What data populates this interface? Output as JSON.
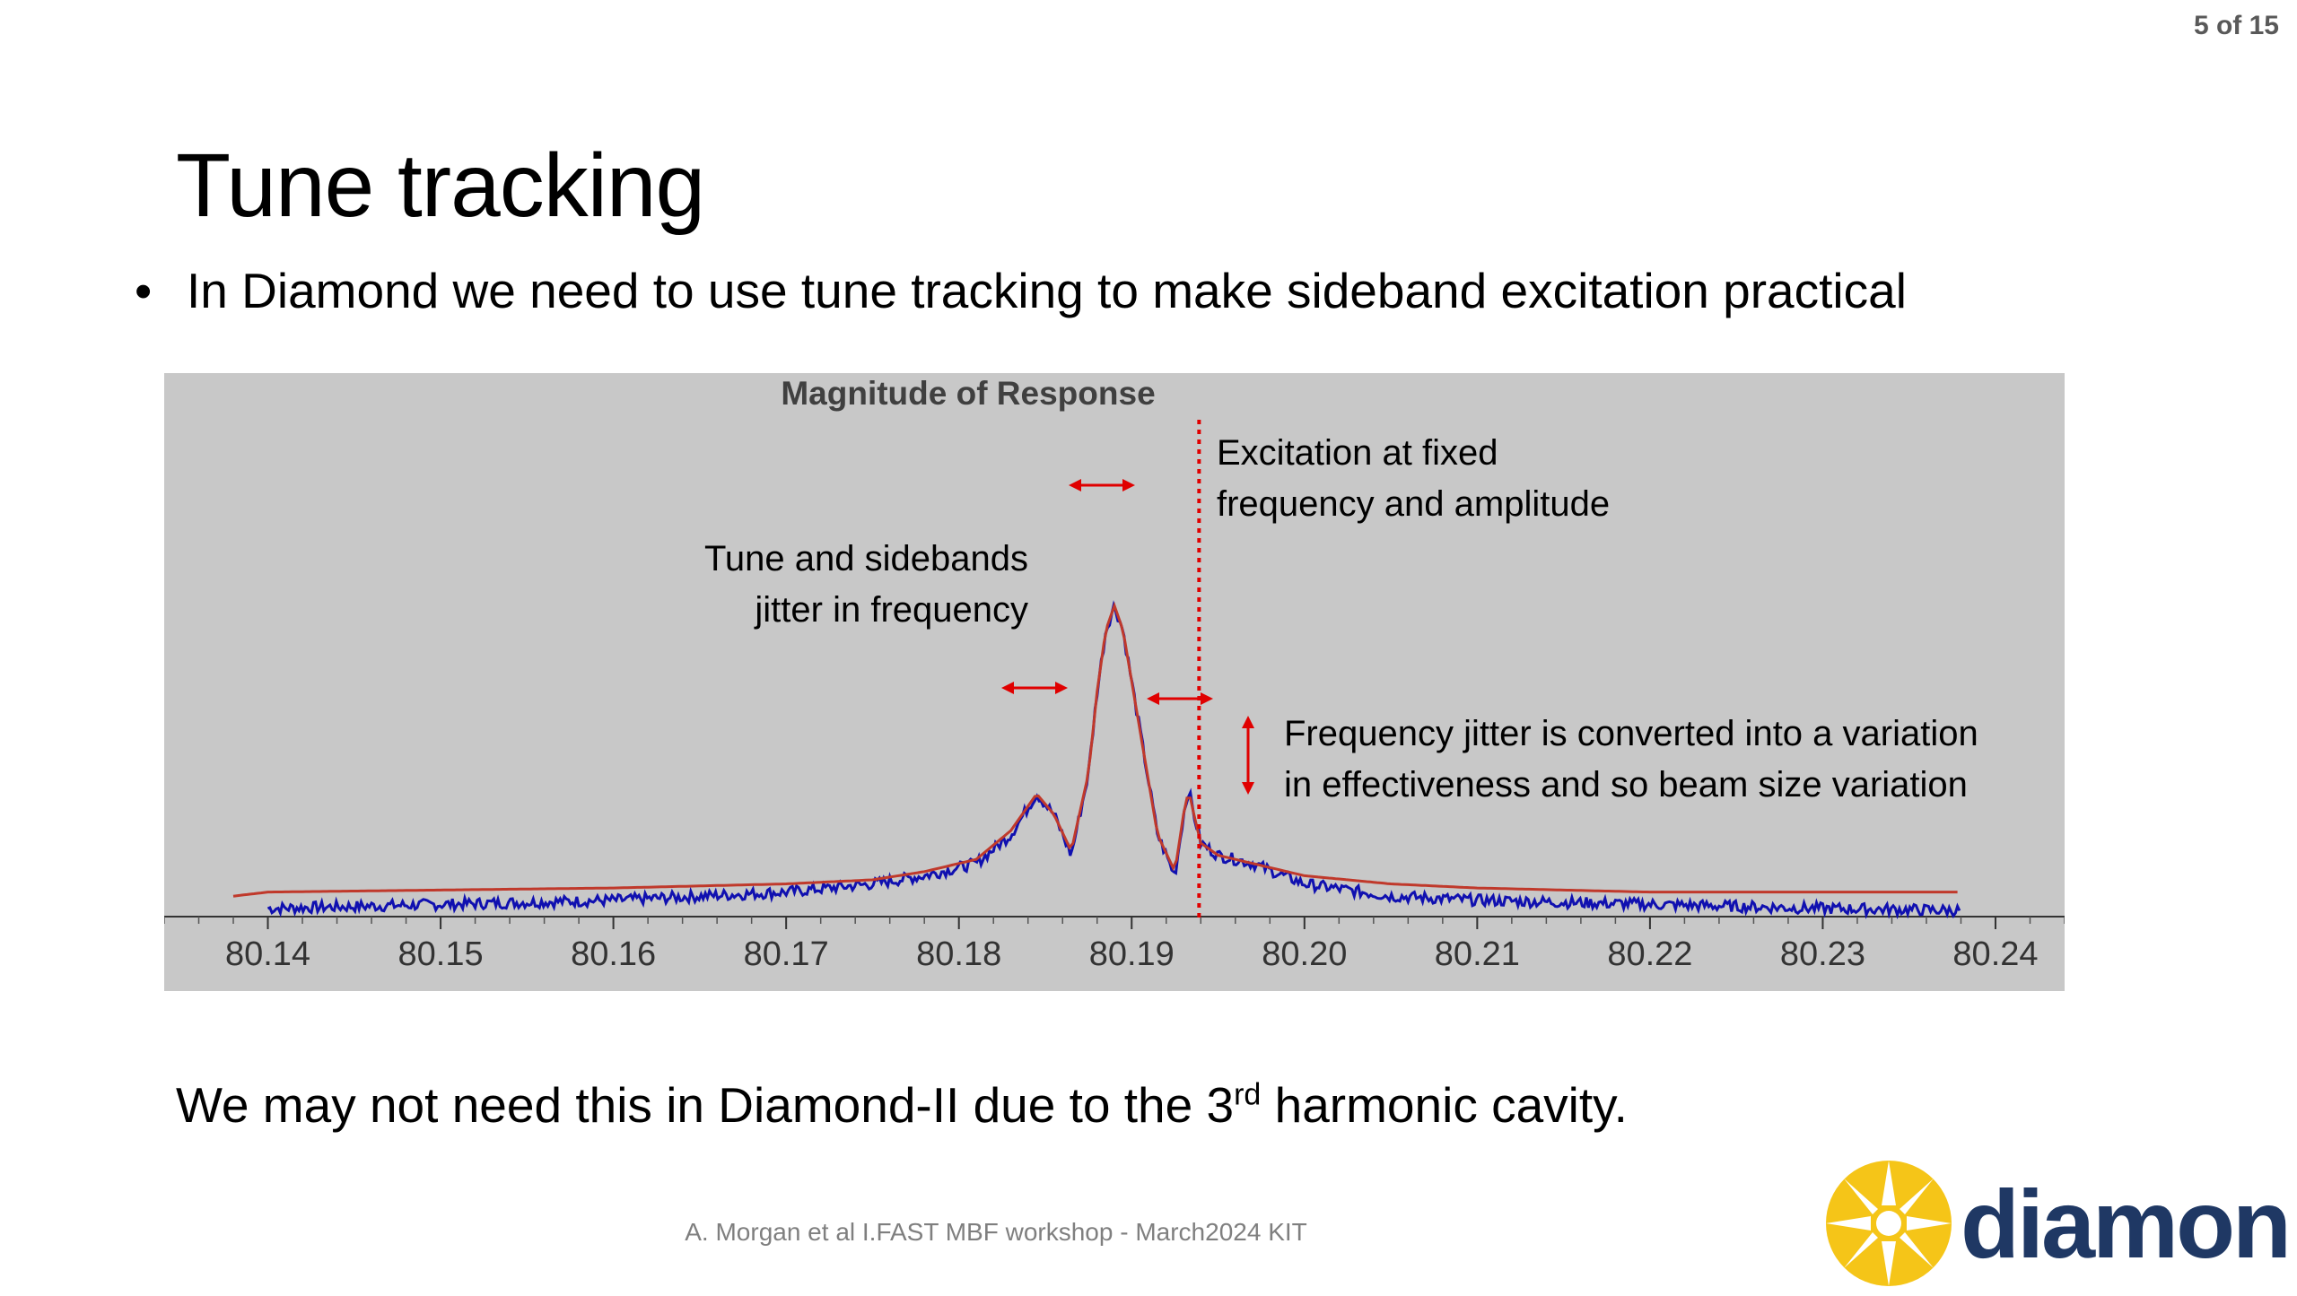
{
  "slide": {
    "page_number": "5 of 15",
    "title": "Tune tracking",
    "bullet": "In Diamond we need to use tune tracking to make sideband excitation practical",
    "note_pre": "We may not need this in Diamond-II due to the 3",
    "note_sup": "rd",
    "note_post": " harmonic cavity.",
    "footer": "A. Morgan et al I.FAST MBF workshop - March2024 KIT",
    "logo": {
      "text": "diamond",
      "icon": "starburst-logo-icon",
      "color_sun": "#F5C518",
      "color_text": "#1F3864"
    }
  },
  "annotations": {
    "tune_jitter": [
      "Tune and sidebands",
      "jitter in frequency"
    ],
    "fixed_excitation": [
      "Excitation at fixed",
      "frequency and amplitude"
    ],
    "effectiveness": [
      "Frequency jitter is converted into a variation",
      "in effectiveness and so beam size variation"
    ]
  },
  "colors": {
    "plot_bg": "#c8c8c8",
    "response": "#1010b0",
    "fit": "#c0392b",
    "marker": "#e00000"
  },
  "chart_data": {
    "type": "line",
    "title": "Magnitude of Response",
    "xlabel": "",
    "ylabel": "",
    "xlim": [
      80.134,
      80.244
    ],
    "ylim": [
      0,
      1
    ],
    "x_ticks": [
      "80.14",
      "80.15",
      "80.16",
      "80.17",
      "80.18",
      "80.19",
      "80.20",
      "80.21",
      "80.22",
      "80.23",
      "80.24"
    ],
    "y_axis_visible": false,
    "grid": false,
    "excitation_frequency": 80.1939,
    "series": [
      {
        "style": "measured",
        "x": [
          80.14,
          80.15,
          80.16,
          80.165,
          80.17,
          80.175,
          80.178,
          80.181,
          80.183,
          80.1845,
          80.1855,
          80.1865,
          80.1875,
          80.188,
          80.1885,
          80.189,
          80.1895,
          80.1905,
          80.1915,
          80.1925,
          80.193,
          80.1933,
          80.1936,
          80.194,
          80.195,
          80.197,
          80.2,
          80.205,
          80.21,
          80.22,
          80.23,
          80.238
        ],
        "y": [
          0.02,
          0.03,
          0.04,
          0.05,
          0.06,
          0.08,
          0.1,
          0.13,
          0.2,
          0.3,
          0.25,
          0.15,
          0.35,
          0.55,
          0.7,
          0.76,
          0.7,
          0.45,
          0.2,
          0.1,
          0.25,
          0.31,
          0.25,
          0.18,
          0.15,
          0.13,
          0.08,
          0.05,
          0.04,
          0.03,
          0.02,
          0.015
        ]
      },
      {
        "style": "fit",
        "x": [
          80.138,
          80.14,
          80.16,
          80.17,
          80.175,
          80.178,
          80.181,
          80.183,
          80.1845,
          80.1855,
          80.1865,
          80.1875,
          80.188,
          80.1885,
          80.189,
          80.1895,
          80.1905,
          80.1915,
          80.1925,
          80.193,
          80.1933,
          80.1936,
          80.194,
          80.195,
          80.197,
          80.2,
          80.205,
          80.21,
          80.22,
          80.238
        ],
        "y": [
          0.05,
          0.06,
          0.07,
          0.08,
          0.09,
          0.11,
          0.14,
          0.21,
          0.3,
          0.25,
          0.16,
          0.35,
          0.55,
          0.7,
          0.76,
          0.7,
          0.45,
          0.2,
          0.11,
          0.25,
          0.31,
          0.25,
          0.18,
          0.15,
          0.13,
          0.1,
          0.08,
          0.07,
          0.06,
          0.06
        ]
      }
    ]
  }
}
